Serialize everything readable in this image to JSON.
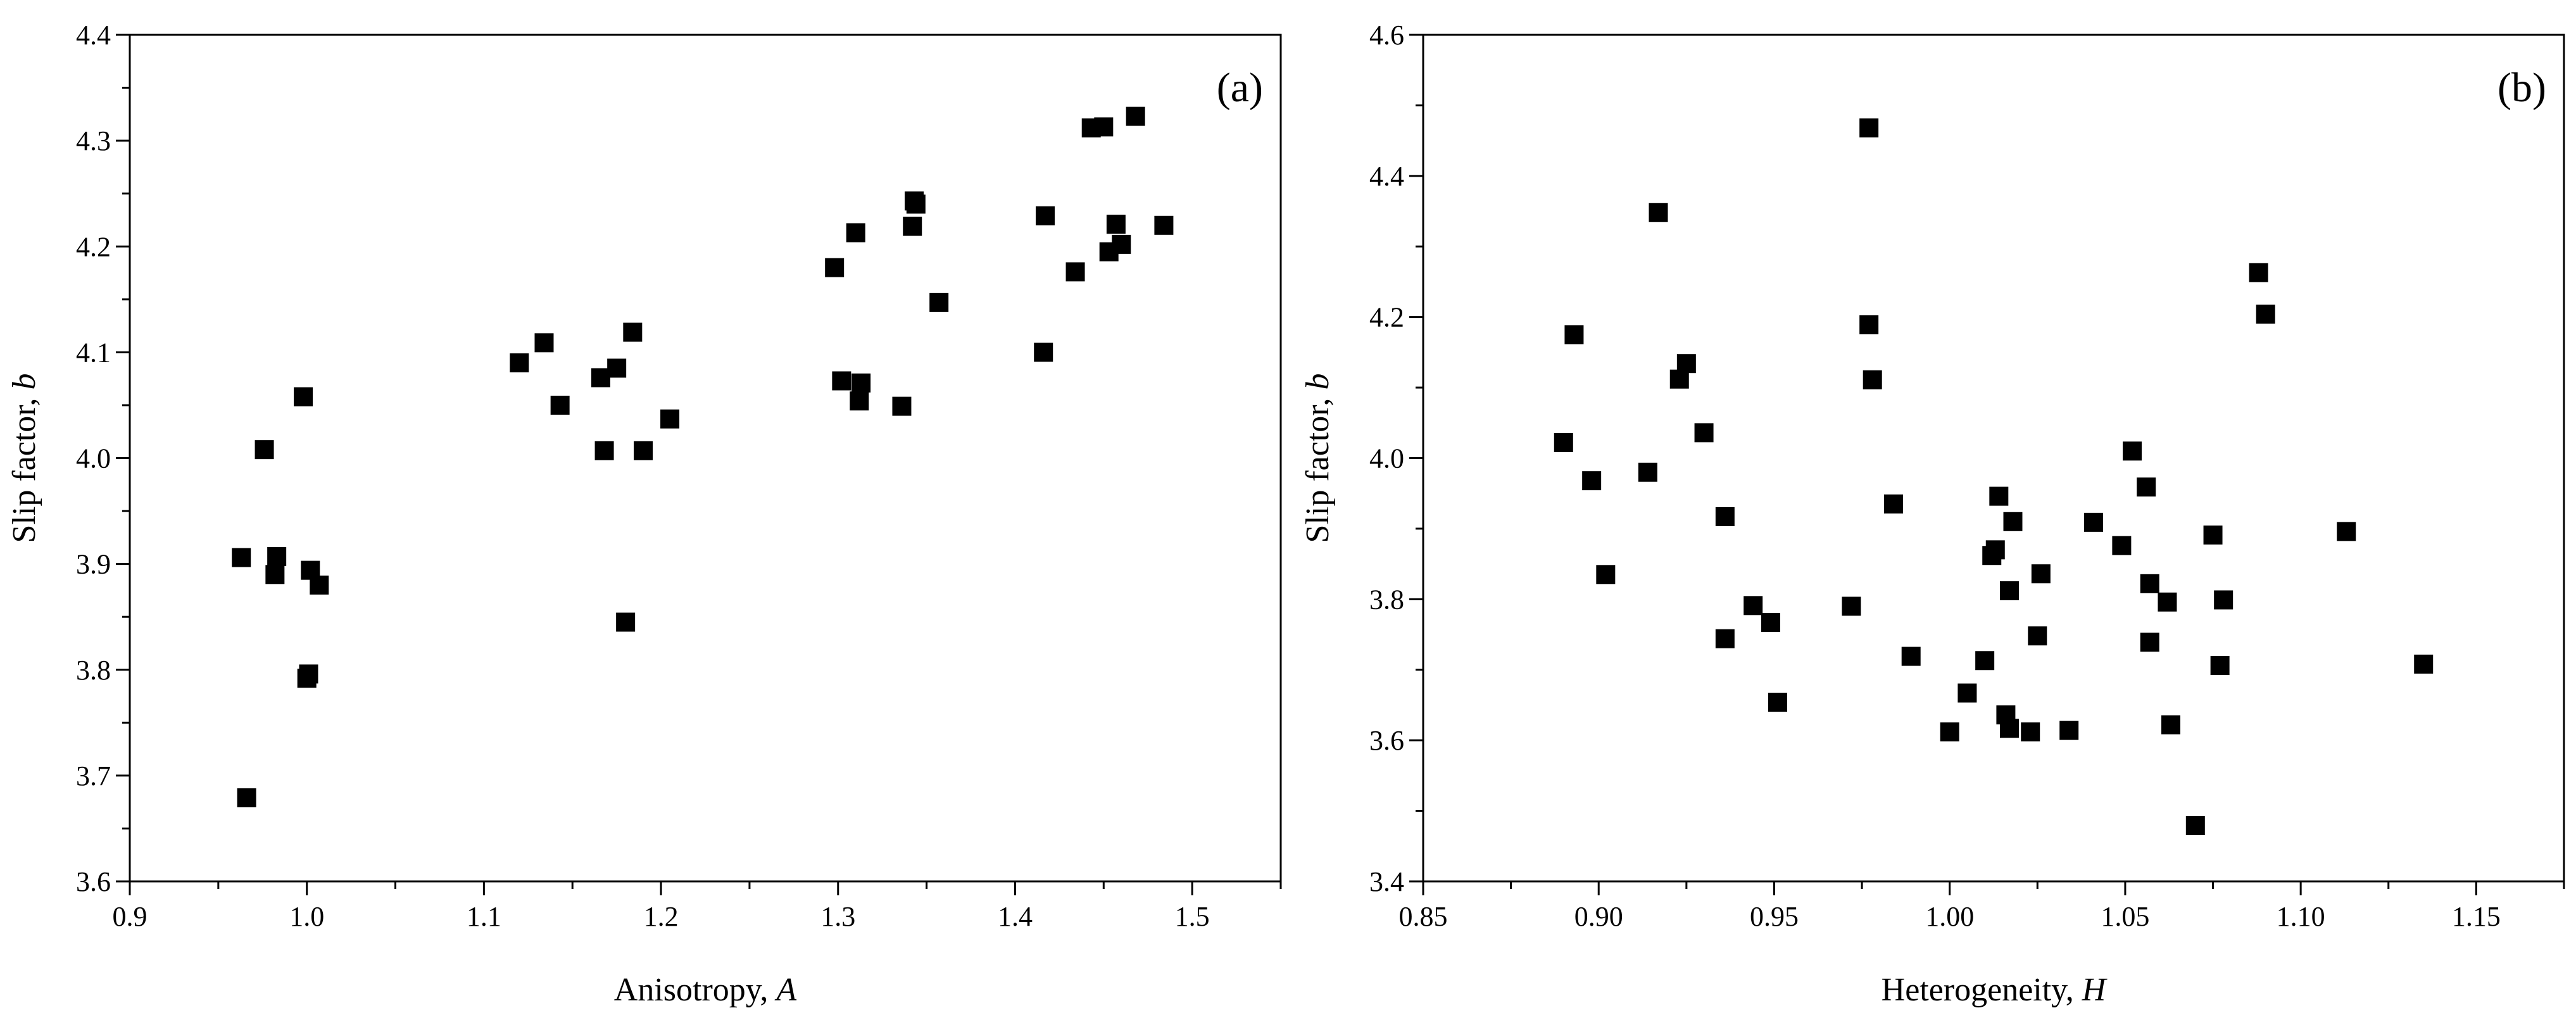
{
  "chart_data": [
    {
      "type": "scatter",
      "panel_label": "(a)",
      "xlabel": "Anisotropy, ",
      "xlabel_var": "A",
      "ylabel": "Slip factor, ",
      "ylabel_var": "b",
      "xlim": [
        0.9,
        1.55
      ],
      "ylim": [
        3.6,
        4.4
      ],
      "xticks": [
        0.9,
        1.0,
        1.1,
        1.2,
        1.3,
        1.4,
        1.5
      ],
      "xtick_labels": [
        "0.9",
        "1.0",
        "1.1",
        "1.2",
        "1.3",
        "1.4",
        "1.5"
      ],
      "yticks": [
        3.6,
        3.7,
        3.8,
        3.9,
        4.0,
        4.1,
        4.2,
        4.3,
        4.4
      ],
      "ytick_labels": [
        "3.6",
        "3.7",
        "3.8",
        "3.9",
        "4.0",
        "4.1",
        "4.2",
        "4.3",
        "4.4"
      ],
      "marker": "square",
      "marker_color": "#000000",
      "x": [
        0.963,
        0.966,
        0.976,
        0.982,
        0.983,
        0.998,
        1.0,
        1.001,
        1.002,
        1.007,
        1.12,
        1.134,
        1.143,
        1.166,
        1.168,
        1.175,
        1.18,
        1.184,
        1.19,
        1.205,
        1.298,
        1.302,
        1.31,
        1.312,
        1.313,
        1.336,
        1.342,
        1.343,
        1.344,
        1.357,
        1.416,
        1.417,
        1.434,
        1.443,
        1.45,
        1.453,
        1.457,
        1.46,
        1.468,
        1.484
      ],
      "y": [
        3.906,
        3.679,
        4.008,
        3.89,
        3.907,
        4.058,
        3.792,
        3.796,
        3.894,
        3.88,
        4.09,
        4.109,
        4.05,
        4.076,
        4.007,
        4.085,
        3.845,
        4.119,
        4.007,
        4.037,
        4.18,
        4.073,
        4.213,
        4.054,
        4.071,
        4.049,
        4.219,
        4.243,
        4.24,
        4.147,
        4.1,
        4.229,
        4.176,
        4.312,
        4.313,
        4.195,
        4.221,
        4.202,
        4.323,
        4.22
      ]
    },
    {
      "type": "scatter",
      "panel_label": "(b)",
      "xlabel": "Heterogeneity, ",
      "xlabel_var": "H",
      "ylabel": "Slip factor, ",
      "ylabel_var": "b",
      "xlim": [
        0.85,
        1.175
      ],
      "ylim": [
        3.4,
        4.6
      ],
      "xticks": [
        0.85,
        0.9,
        0.95,
        1.0,
        1.05,
        1.1,
        1.15
      ],
      "xtick_labels": [
        "0.85",
        "0.90",
        "0.95",
        "1.00",
        "1.05",
        "1.10",
        "1.15"
      ],
      "yticks": [
        3.4,
        3.6,
        3.8,
        4.0,
        4.2,
        4.4,
        4.6
      ],
      "ytick_labels": [
        "3.4",
        "3.6",
        "3.8",
        "4.0",
        "4.2",
        "4.4",
        "4.6"
      ],
      "marker": "square",
      "marker_color": "#000000",
      "x": [
        0.89,
        0.893,
        0.898,
        0.902,
        0.914,
        0.917,
        0.923,
        0.925,
        0.93,
        0.936,
        0.936,
        0.944,
        0.949,
        0.951,
        0.972,
        0.977,
        0.977,
        0.978,
        0.984,
        0.989,
        1.0,
        1.005,
        1.01,
        1.012,
        1.013,
        1.014,
        1.016,
        1.017,
        1.017,
        1.018,
        1.023,
        1.025,
        1.026,
        1.034,
        1.041,
        1.049,
        1.052,
        1.056,
        1.057,
        1.057,
        1.062,
        1.063,
        1.075,
        1.077,
        1.078,
        1.07,
        1.088,
        1.09,
        1.113,
        1.135
      ],
      "y": [
        4.022,
        4.175,
        3.968,
        3.835,
        3.98,
        4.348,
        4.112,
        4.134,
        4.036,
        3.917,
        3.744,
        3.791,
        3.767,
        3.654,
        3.79,
        4.189,
        4.468,
        4.111,
        3.935,
        3.719,
        3.612,
        3.667,
        3.713,
        3.862,
        3.87,
        3.946,
        3.636,
        3.617,
        3.812,
        3.91,
        3.612,
        3.748,
        3.836,
        3.614,
        3.909,
        3.876,
        4.01,
        3.959,
        3.822,
        3.739,
        3.796,
        3.622,
        3.891,
        3.706,
        3.799,
        3.479,
        4.263,
        4.204,
        3.896,
        3.708
      ]
    }
  ]
}
